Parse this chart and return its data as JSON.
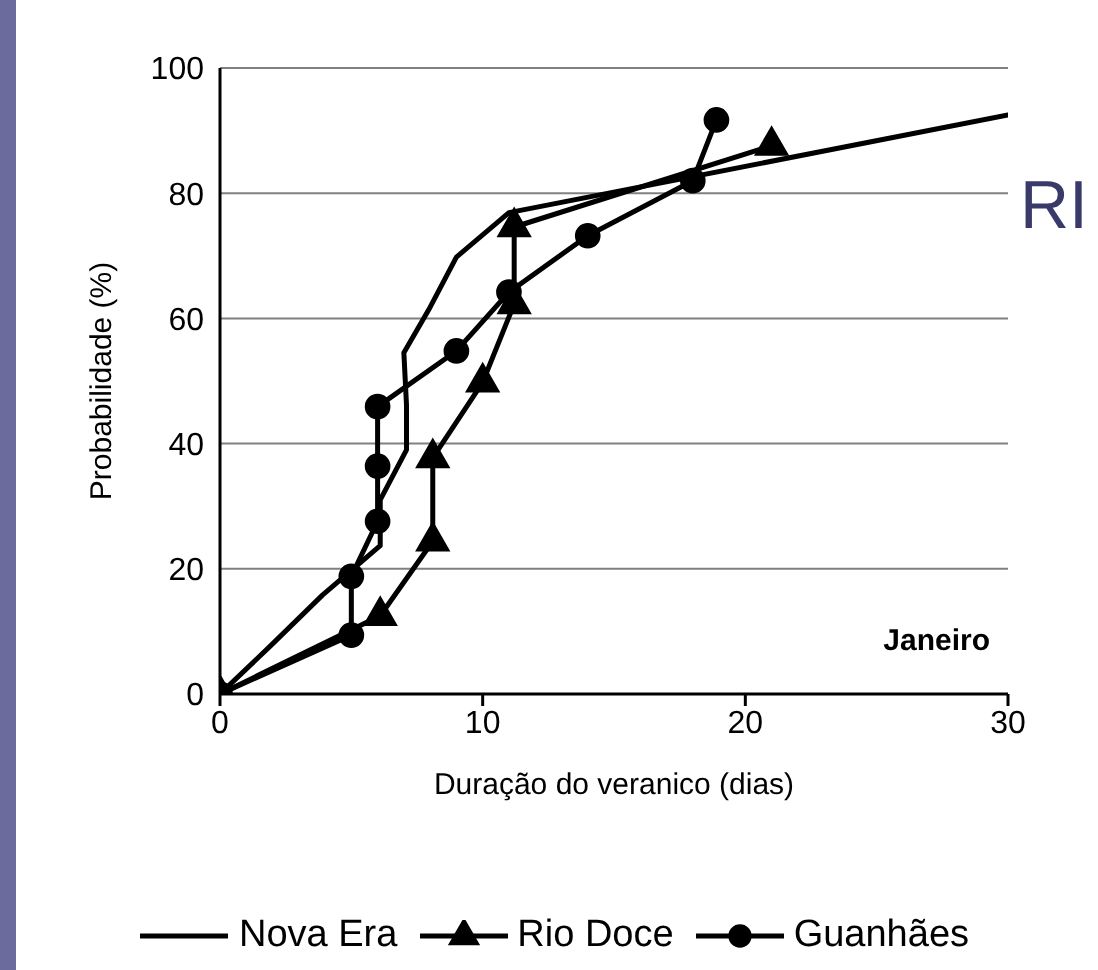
{
  "chart_data": {
    "type": "line",
    "xlabel": "Duração do veranico (dias)",
    "ylabel": "Probabilidade (%)",
    "xlim": [
      0,
      30
    ],
    "xticks": [
      0,
      10,
      20,
      30
    ],
    "ylim": [
      0,
      100
    ],
    "yticks": [
      0,
      20,
      40,
      60,
      80,
      100
    ],
    "grid": "y",
    "legend": "bottom",
    "line_style": "solid",
    "annotations": [
      "Janeiro",
      "RI"
    ],
    "series": [
      {
        "name": "Nova Era",
        "color": "#000000",
        "marker": "none",
        "x": [
          0,
          2,
          3.9,
          6.1,
          6.1,
          7.1,
          7.1,
          7,
          8,
          9,
          11,
          30
        ],
        "values": [
          0,
          8,
          15.8,
          23.7,
          31,
          39,
          46.2,
          54.5,
          61.8,
          69.8,
          76.9,
          92.5
        ]
      },
      {
        "name": "Rio Doce",
        "color": "#000000",
        "marker": "triangle",
        "x": [
          0,
          6.1,
          8.1,
          8.1,
          10,
          11.2,
          11.2,
          21
        ],
        "values": [
          0,
          12.5,
          24.4,
          37.7,
          49.8,
          62.3,
          74.6,
          87.6
        ]
      },
      {
        "name": "Guanhães",
        "color": "#000000",
        "marker": "circle",
        "x": [
          0,
          5,
          5,
          6,
          6,
          6,
          9,
          11,
          14,
          18,
          18.9
        ],
        "values": [
          0,
          9.4,
          18.8,
          27.6,
          36.4,
          45.9,
          54.8,
          64.2,
          73.2,
          82,
          91.7
        ]
      }
    ]
  }
}
